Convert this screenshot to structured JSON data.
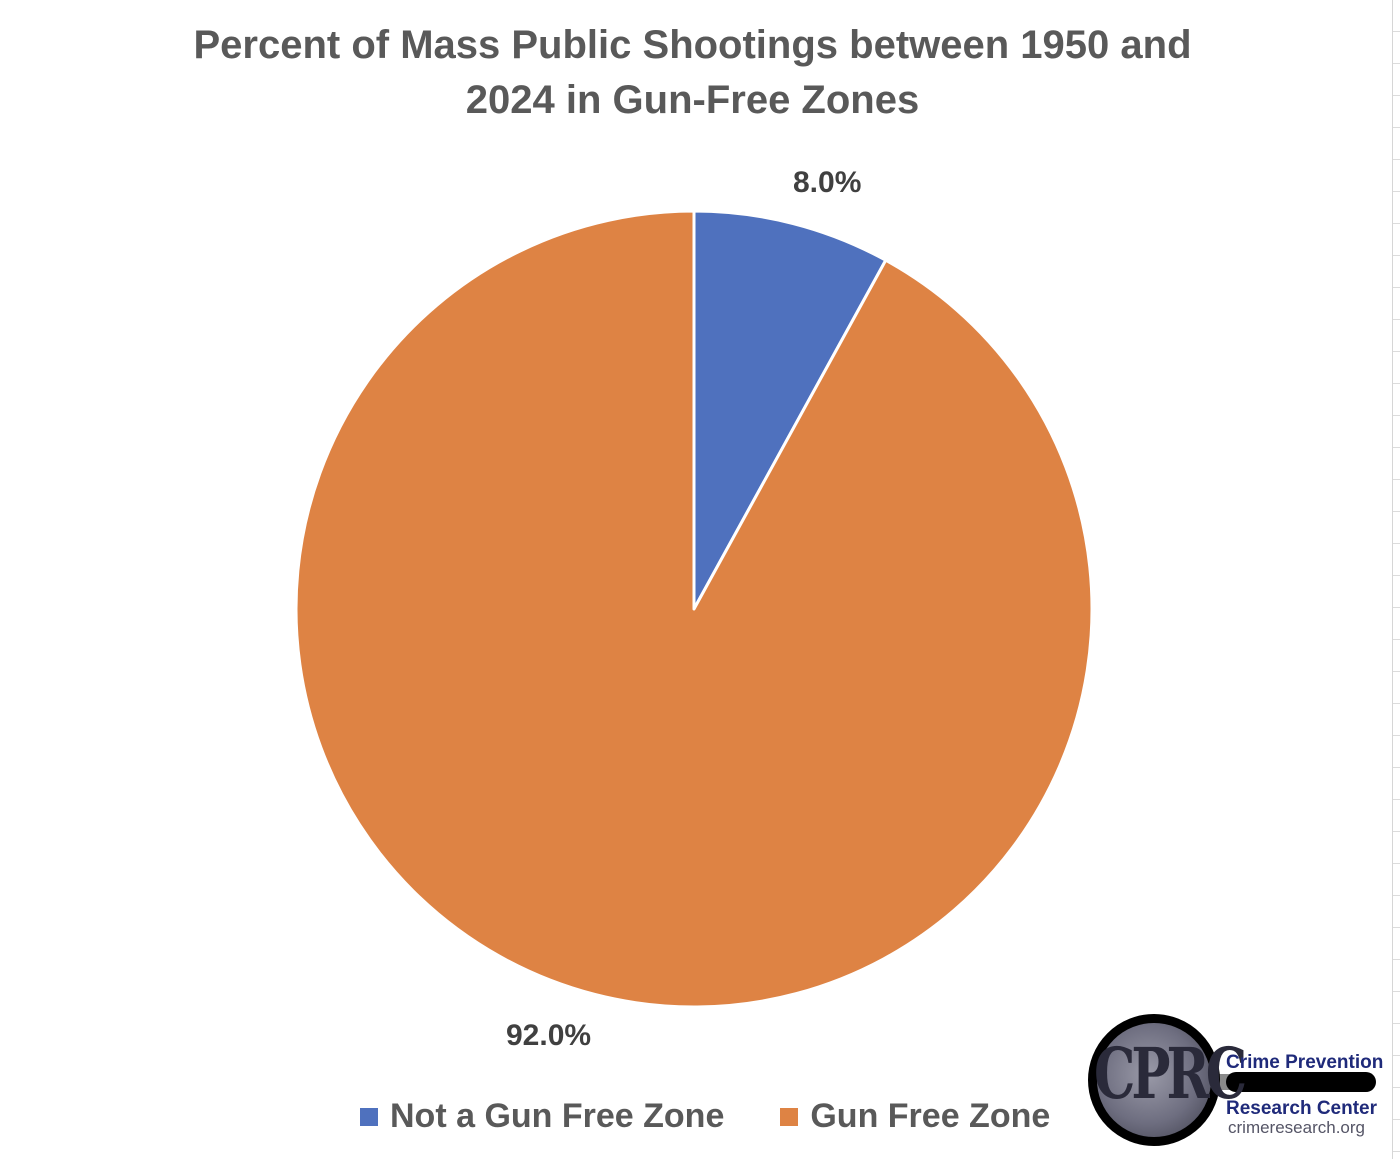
{
  "chart_data": {
    "type": "pie",
    "title": "Percent of Mass Public Shootings between 1950 and 2024 in Gun-Free Zones",
    "slices": [
      {
        "name": "Not a Gun Free Zone",
        "value": 8.0,
        "label": "8.0%",
        "color": "#4F71BE"
      },
      {
        "name": "Gun Free Zone",
        "value": 92.0,
        "label": "92.0%",
        "color": "#DE8344"
      }
    ],
    "start_angle": "12 o'clock",
    "direction": "clockwise",
    "legend_position": "bottom"
  },
  "logo": {
    "letters": "CPRC",
    "line1": "Crime Prevention",
    "line2": "Research Center",
    "line3": "crimeresearch.org"
  }
}
